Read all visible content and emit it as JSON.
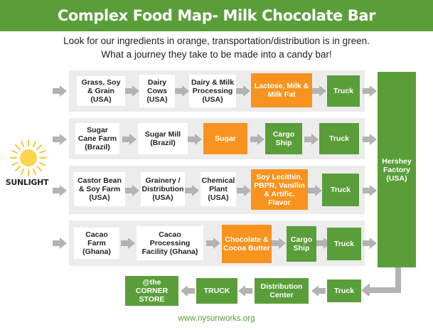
{
  "title": "Complex Food Map- Milk Chocolate Bar",
  "subtitle": {
    "line1": "Look for our ingredients in orange, transportation/distribution is in green.",
    "line2": "What a journey they take to be made into a candy bar!"
  },
  "sunlight": {
    "label": "SUNLIGHT",
    "icon": "sun-icon"
  },
  "colors": {
    "green": "#5a9e3a",
    "orange": "#f7931e",
    "row_bg": "#ececec",
    "arrow": "#b3b3b3"
  },
  "rows": [
    {
      "boxes": [
        "Grass, Soy & Grain (USA)",
        "Dairy Cows (USA)",
        "Dairy & Milk Processing (USA)",
        "Lactose, Milk & Milk Fat",
        "Truck"
      ]
    },
    {
      "boxes": [
        "Sugar Cane Farm (Brazil)",
        "Sugar Mill (Brazil)",
        "Sugar",
        "Cargo Ship",
        "Truck"
      ]
    },
    {
      "boxes": [
        "Castor Bean & Soy Farm (USA)",
        "Grainery / Distribution (USA)",
        "Chemical Plant (USA)",
        "Soy Lecithin, PBPR, Vanillin & Artific. Flavor",
        "Truck"
      ]
    },
    {
      "boxes": [
        "Cacao Farm (Ghana)",
        "Cacao Processing Facility (Ghana)",
        "Chocolate & Cocoa Butter",
        "Cargo Ship",
        "Truck"
      ]
    }
  ],
  "hershey": "Hershey Factory (USA)",
  "bottom": {
    "truck1": "Truck",
    "distribution": "Distribution Center",
    "truck2": "TRUCK",
    "store": "@the CORNER STORE"
  },
  "footer": "www.nysunworks.org"
}
